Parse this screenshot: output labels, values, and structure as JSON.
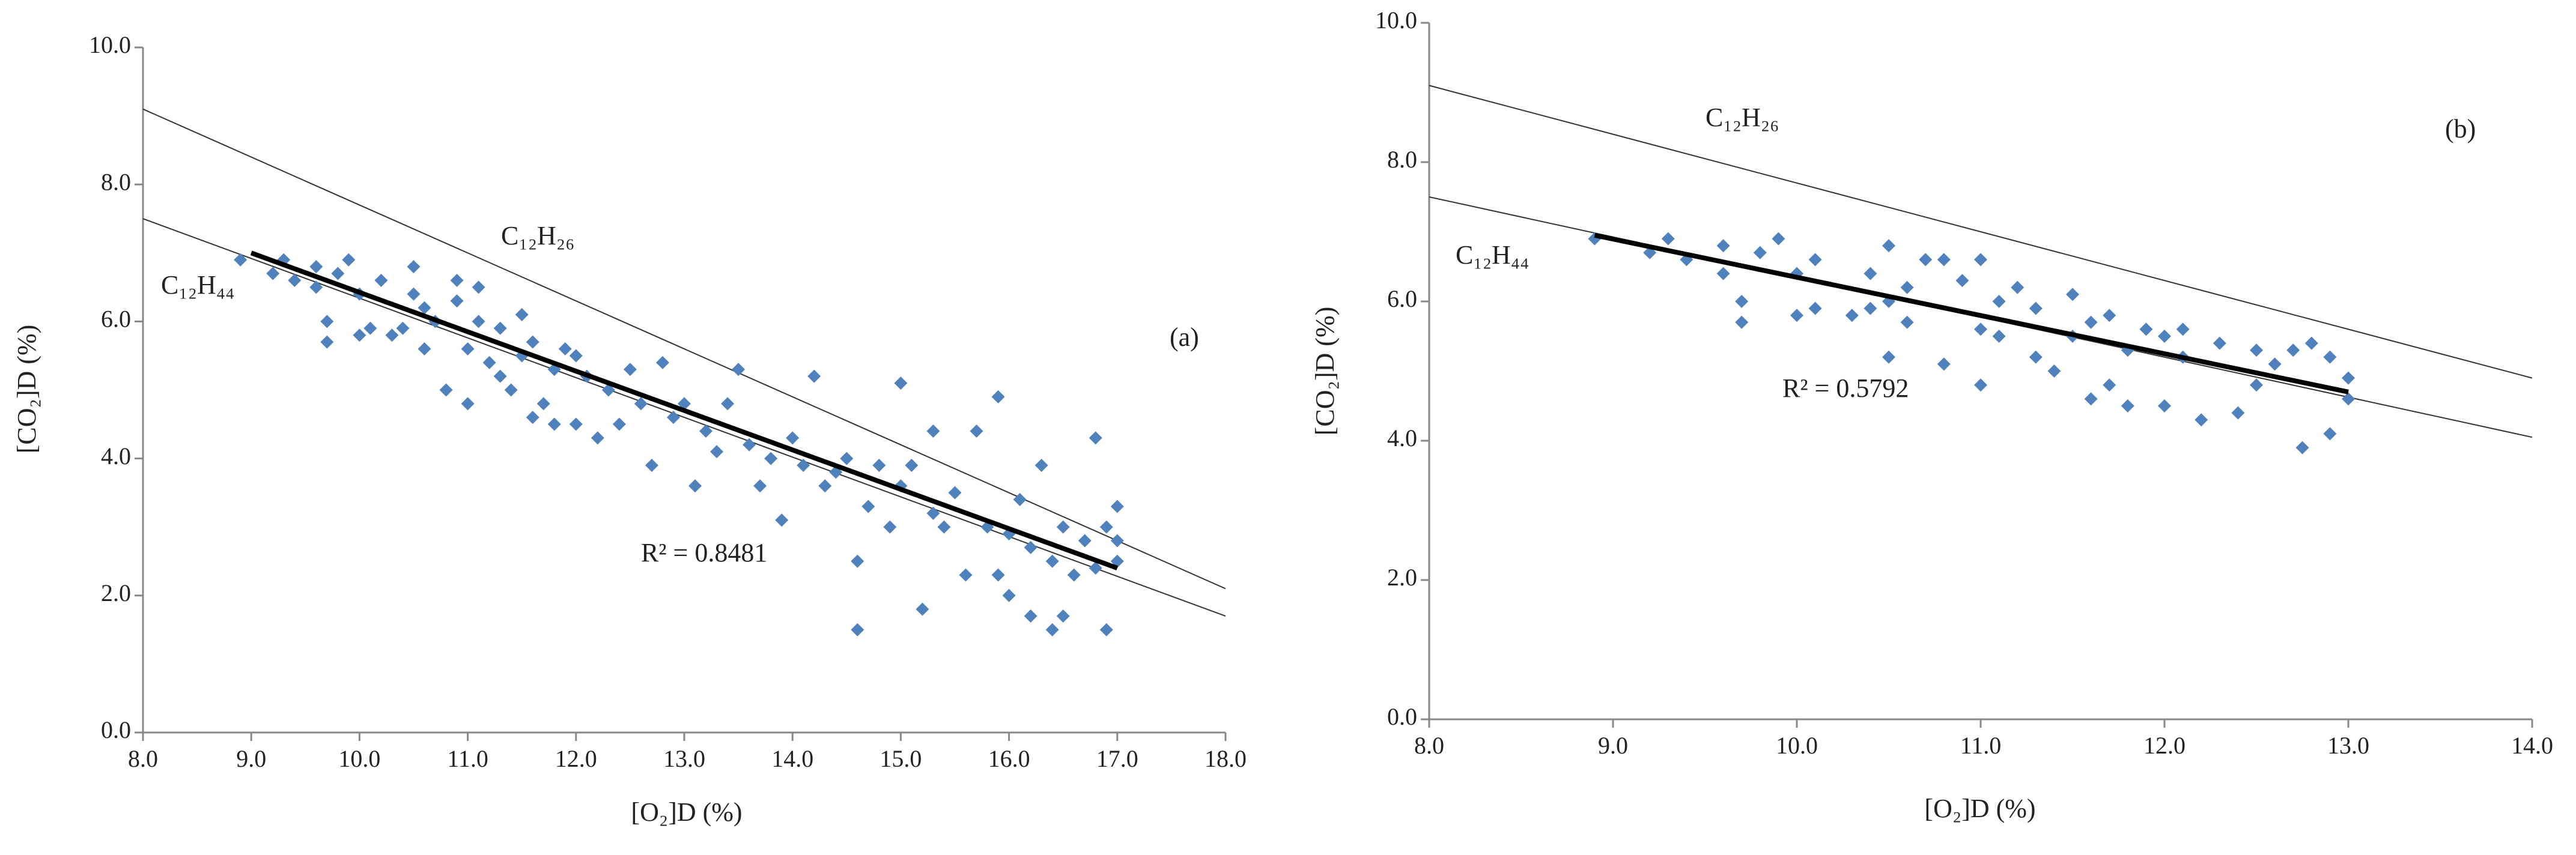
{
  "chart_data": [
    {
      "type": "scatter",
      "color": "#4f81bd",
      "grid": false,
      "xlabel": "[O₂]D (%)",
      "ylabel": "[CO₂]D (%)",
      "xlim": [
        8,
        18
      ],
      "ylim": [
        0,
        10
      ],
      "xticks": [
        {
          "value": 8,
          "label": "8.0"
        },
        {
          "value": 9,
          "label": "9.0"
        },
        {
          "value": 10,
          "label": "10.0"
        },
        {
          "value": 11,
          "label": "11.0"
        },
        {
          "value": 12,
          "label": "12.0"
        },
        {
          "value": 13,
          "label": "13.0"
        },
        {
          "value": 14,
          "label": "14.0"
        },
        {
          "value": 15,
          "label": "15.0"
        },
        {
          "value": 16,
          "label": "16.0"
        },
        {
          "value": 17,
          "label": "17.0"
        },
        {
          "value": 18,
          "label": "18.0"
        }
      ],
      "yticks": [
        {
          "value": 0,
          "label": "0.0"
        },
        {
          "value": 2,
          "label": "2.0"
        },
        {
          "value": 4,
          "label": "4.0"
        },
        {
          "value": 6,
          "label": "6.0"
        },
        {
          "value": 8,
          "label": "8.0"
        },
        {
          "value": 10,
          "label": "10.0"
        }
      ],
      "x": [
        8.9,
        9.2,
        9.3,
        9.4,
        9.6,
        9.6,
        9.7,
        9.7,
        9.8,
        9.9,
        10.0,
        10.0,
        10.1,
        10.2,
        10.3,
        10.4,
        10.5,
        10.5,
        10.6,
        10.6,
        10.7,
        10.8,
        10.9,
        10.9,
        11.0,
        11.0,
        11.1,
        11.1,
        11.2,
        11.3,
        11.3,
        11.4,
        11.5,
        11.5,
        11.6,
        11.6,
        11.7,
        11.8,
        11.8,
        11.9,
        12.0,
        12.0,
        12.1,
        12.2,
        12.3,
        12.4,
        12.5,
        12.6,
        12.7,
        12.8,
        12.9,
        13.0,
        13.1,
        13.2,
        13.3,
        13.4,
        13.5,
        13.6,
        13.7,
        13.8,
        13.9,
        14.0,
        14.1,
        14.2,
        14.3,
        14.4,
        14.5,
        14.6,
        14.6,
        14.7,
        14.8,
        14.9,
        15.0,
        15.0,
        15.1,
        15.2,
        15.3,
        15.3,
        15.4,
        15.5,
        15.6,
        15.7,
        15.8,
        15.9,
        15.9,
        16.0,
        16.0,
        16.1,
        16.2,
        16.2,
        16.3,
        16.4,
        16.4,
        16.5,
        16.5,
        16.6,
        16.7,
        16.8,
        16.8,
        16.9,
        16.9,
        17.0,
        17.0,
        17.0
      ],
      "values": [
        6.9,
        6.7,
        6.9,
        6.6,
        6.8,
        6.5,
        5.7,
        6.0,
        6.7,
        6.9,
        6.4,
        5.8,
        5.9,
        6.6,
        5.8,
        5.9,
        6.4,
        6.8,
        5.6,
        6.2,
        6.0,
        5.0,
        6.3,
        6.6,
        5.6,
        4.8,
        6.5,
        6.0,
        5.4,
        5.2,
        5.9,
        5.0,
        5.5,
        6.1,
        4.6,
        5.7,
        4.8,
        4.5,
        5.3,
        5.6,
        4.5,
        5.5,
        5.2,
        4.3,
        5.0,
        4.5,
        5.3,
        4.8,
        3.9,
        5.4,
        4.6,
        4.8,
        3.6,
        4.4,
        4.1,
        4.8,
        5.3,
        4.2,
        3.6,
        4.0,
        3.1,
        4.3,
        3.9,
        5.2,
        3.6,
        3.8,
        4.0,
        2.5,
        1.5,
        3.3,
        3.9,
        3.0,
        5.1,
        3.6,
        3.9,
        1.8,
        3.2,
        4.4,
        3.0,
        3.5,
        2.3,
        4.4,
        3.0,
        4.9,
        2.3,
        2.9,
        2.0,
        3.4,
        1.7,
        2.7,
        3.9,
        1.5,
        2.5,
        3.0,
        1.7,
        2.3,
        2.8,
        4.3,
        2.4,
        1.5,
        3.0,
        2.5,
        3.3,
        2.8
      ],
      "fit": {
        "x": [
          9,
          17
        ],
        "values": [
          7.0,
          2.4
        ]
      },
      "lines": [
        {
          "name": "C₁₂H₂₆",
          "x": [
            8,
            18
          ],
          "values": [
            9.1,
            2.1
          ]
        },
        {
          "name": "C₁₂H₄₄",
          "x": [
            8,
            18
          ],
          "values": [
            7.5,
            1.7
          ]
        }
      ],
      "annotations": [
        "R² = 0.8481",
        "(a)"
      ]
    },
    {
      "type": "scatter",
      "color": "#4f81bd",
      "grid": false,
      "xlabel": "[O₂]D (%)",
      "ylabel": "[CO₂]D (%)",
      "xlim": [
        8,
        14
      ],
      "ylim": [
        0,
        10
      ],
      "xticks": [
        {
          "value": 8,
          "label": "8.0"
        },
        {
          "value": 9,
          "label": "9.0"
        },
        {
          "value": 10,
          "label": "10.0"
        },
        {
          "value": 11,
          "label": "11.0"
        },
        {
          "value": 12,
          "label": "12.0"
        },
        {
          "value": 13,
          "label": "13.0"
        },
        {
          "value": 14,
          "label": "14.0"
        }
      ],
      "yticks": [
        {
          "value": 0,
          "label": "0.0"
        },
        {
          "value": 2,
          "label": "2.0"
        },
        {
          "value": 4,
          "label": "4.0"
        },
        {
          "value": 6,
          "label": "6.0"
        },
        {
          "value": 8,
          "label": "8.0"
        },
        {
          "value": 10,
          "label": "10.0"
        }
      ],
      "x": [
        8.9,
        9.2,
        9.3,
        9.4,
        9.6,
        9.6,
        9.7,
        9.7,
        9.8,
        9.9,
        10.0,
        10.0,
        10.1,
        10.1,
        10.3,
        10.4,
        10.4,
        10.5,
        10.5,
        10.5,
        10.6,
        10.6,
        10.7,
        10.8,
        10.9,
        10.8,
        11.0,
        11.0,
        11.0,
        11.1,
        11.1,
        11.2,
        11.3,
        11.3,
        11.4,
        11.5,
        11.5,
        11.6,
        11.6,
        11.7,
        11.7,
        11.8,
        11.8,
        11.9,
        12.0,
        12.0,
        12.1,
        12.1,
        12.2,
        12.3,
        12.4,
        12.5,
        12.5,
        12.6,
        12.7,
        12.75,
        12.8,
        12.9,
        12.9,
        13.0,
        13.0
      ],
      "values": [
        6.9,
        6.7,
        6.9,
        6.6,
        6.8,
        6.4,
        5.7,
        6.0,
        6.7,
        6.9,
        6.4,
        5.8,
        5.9,
        6.6,
        5.8,
        5.9,
        6.4,
        6.0,
        5.2,
        6.8,
        6.2,
        5.7,
        6.6,
        5.1,
        6.3,
        6.6,
        5.6,
        4.8,
        6.6,
        6.0,
        5.5,
        6.2,
        5.2,
        5.9,
        5.0,
        5.5,
        6.1,
        4.6,
        5.7,
        4.8,
        5.8,
        4.5,
        5.3,
        5.6,
        4.5,
        5.5,
        5.2,
        5.6,
        4.3,
        5.4,
        4.4,
        4.8,
        5.3,
        5.1,
        5.3,
        3.9,
        5.4,
        4.1,
        5.2,
        4.9,
        4.6
      ],
      "fit": {
        "x": [
          8.9,
          13
        ],
        "values": [
          6.95,
          4.7
        ]
      },
      "lines": [
        {
          "name": "C₁₂H₂₆",
          "x": [
            8,
            14
          ],
          "values": [
            9.1,
            4.9
          ]
        },
        {
          "name": "C₁₂H₄₄",
          "x": [
            8,
            14
          ],
          "values": [
            7.5,
            4.05
          ]
        }
      ],
      "annotations": [
        "R² = 0.5792",
        "(b)"
      ]
    }
  ]
}
